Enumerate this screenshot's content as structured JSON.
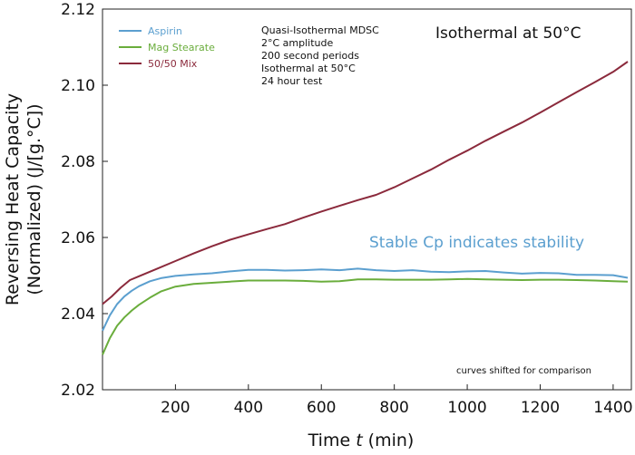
{
  "chart_data": {
    "type": "line",
    "xlabel": "Time t (min)",
    "xlabel_prefix": "Time ",
    "xlabel_var": "t",
    "xlabel_suffix": " (min)",
    "ylabel_line1": "Reversing Heat Capacity",
    "ylabel_line2": "(Normalized) (J/[g.°C])",
    "xlim": [
      0,
      1450
    ],
    "ylim": [
      2.02,
      2.12
    ],
    "xticks": [
      200,
      400,
      600,
      800,
      1000,
      1200,
      1400
    ],
    "yticks": [
      2.02,
      2.04,
      2.06,
      2.08,
      2.1,
      2.12
    ],
    "ytick_labels": [
      "2.02",
      "2.04",
      "2.06",
      "2.08",
      "2.10",
      "2.12"
    ],
    "grid": false,
    "legend_position": "top-left",
    "series": [
      {
        "name": "Aspirin",
        "color": "#5b9fcf",
        "x": [
          0,
          20,
          40,
          60,
          80,
          100,
          130,
          160,
          200,
          250,
          300,
          350,
          400,
          450,
          500,
          550,
          600,
          650,
          700,
          750,
          800,
          850,
          900,
          950,
          1000,
          1050,
          1100,
          1150,
          1200,
          1250,
          1300,
          1350,
          1400,
          1440
        ],
        "y": [
          2.0355,
          2.0395,
          2.0425,
          2.0445,
          2.046,
          2.0472,
          2.0485,
          2.0493,
          2.0499,
          2.0503,
          2.0506,
          2.0511,
          2.0515,
          2.0515,
          2.0513,
          2.0514,
          2.0516,
          2.0514,
          2.0518,
          2.0514,
          2.0512,
          2.0514,
          2.051,
          2.0509,
          2.0511,
          2.0512,
          2.0508,
          2.0505,
          2.0507,
          2.0506,
          2.0502,
          2.0502,
          2.0501,
          2.0494
        ]
      },
      {
        "name": "Mag Stearate",
        "color": "#6aad3c",
        "x": [
          0,
          20,
          40,
          60,
          80,
          100,
          130,
          160,
          200,
          250,
          300,
          350,
          400,
          450,
          500,
          550,
          600,
          650,
          700,
          750,
          800,
          850,
          900,
          950,
          1000,
          1050,
          1100,
          1150,
          1200,
          1250,
          1300,
          1350,
          1400,
          1440
        ],
        "y": [
          2.0292,
          2.0335,
          2.0368,
          2.039,
          2.0408,
          2.0423,
          2.0442,
          2.0458,
          2.0471,
          2.0478,
          2.0481,
          2.0484,
          2.0487,
          2.0487,
          2.0487,
          2.0486,
          2.0484,
          2.0485,
          2.049,
          2.049,
          2.0489,
          2.0489,
          2.0489,
          2.049,
          2.0491,
          2.049,
          2.0489,
          2.0488,
          2.0489,
          2.0489,
          2.0488,
          2.0487,
          2.0485,
          2.0484
        ]
      },
      {
        "name": "50/50 Mix",
        "color": "#8b2a3c",
        "x": [
          0,
          25,
          50,
          75,
          100,
          150,
          200,
          250,
          300,
          350,
          400,
          450,
          500,
          550,
          600,
          650,
          700,
          750,
          800,
          850,
          900,
          950,
          1000,
          1050,
          1100,
          1150,
          1200,
          1250,
          1300,
          1350,
          1400,
          1440
        ],
        "y": [
          2.0425,
          2.0445,
          2.0468,
          2.0488,
          2.0498,
          2.0518,
          2.0538,
          2.0558,
          2.0577,
          2.0594,
          2.0608,
          2.0622,
          2.0635,
          2.0652,
          2.0668,
          2.0683,
          2.0698,
          2.0712,
          2.0732,
          2.0755,
          2.0778,
          2.0804,
          2.0828,
          2.0854,
          2.0878,
          2.0902,
          2.0928,
          2.0955,
          2.0982,
          2.1008,
          2.1035,
          2.1062
        ]
      }
    ],
    "annotations": {
      "method_lines": [
        "Quasi-Isothermal MDSC",
        "2°C amplitude",
        "200 second periods",
        "Isothermal at 50°C",
        "24 hour test"
      ],
      "headline": "Isothermal at 50°C",
      "stable_text": "Stable Cp indicates stability",
      "stable_color": "#5b9fcf",
      "shift_note": "curves shifted for comparison"
    }
  }
}
